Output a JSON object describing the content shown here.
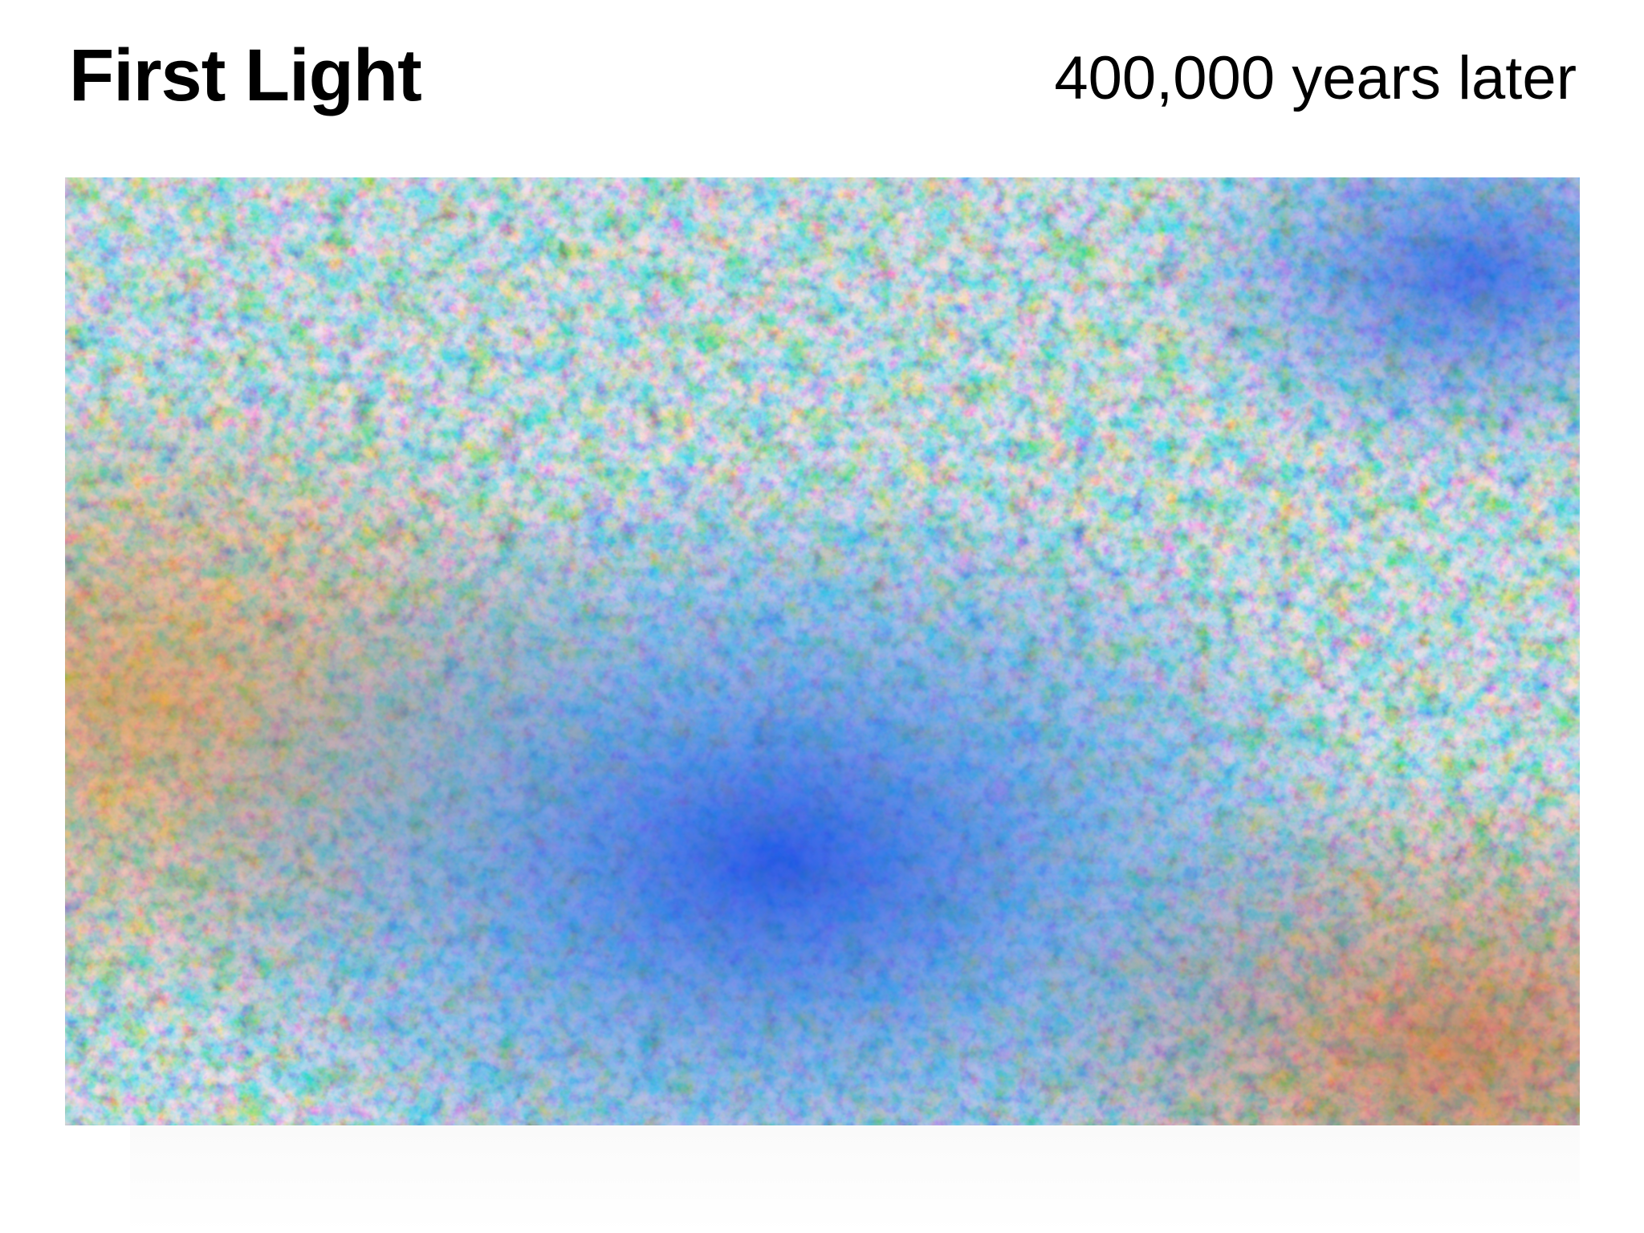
{
  "slide": {
    "title": "First Light",
    "subtitle": "400,000 years later"
  },
  "image": {
    "description_icon": "cosmic-microwave-background-map",
    "palette": {
      "deep_blue": "#1040e8",
      "blue": "#2f7fe6",
      "light_blue": "#8fd0f0",
      "cream": "#f6e6b4",
      "orange": "#f0a040",
      "dark_orange": "#c85a10"
    }
  }
}
